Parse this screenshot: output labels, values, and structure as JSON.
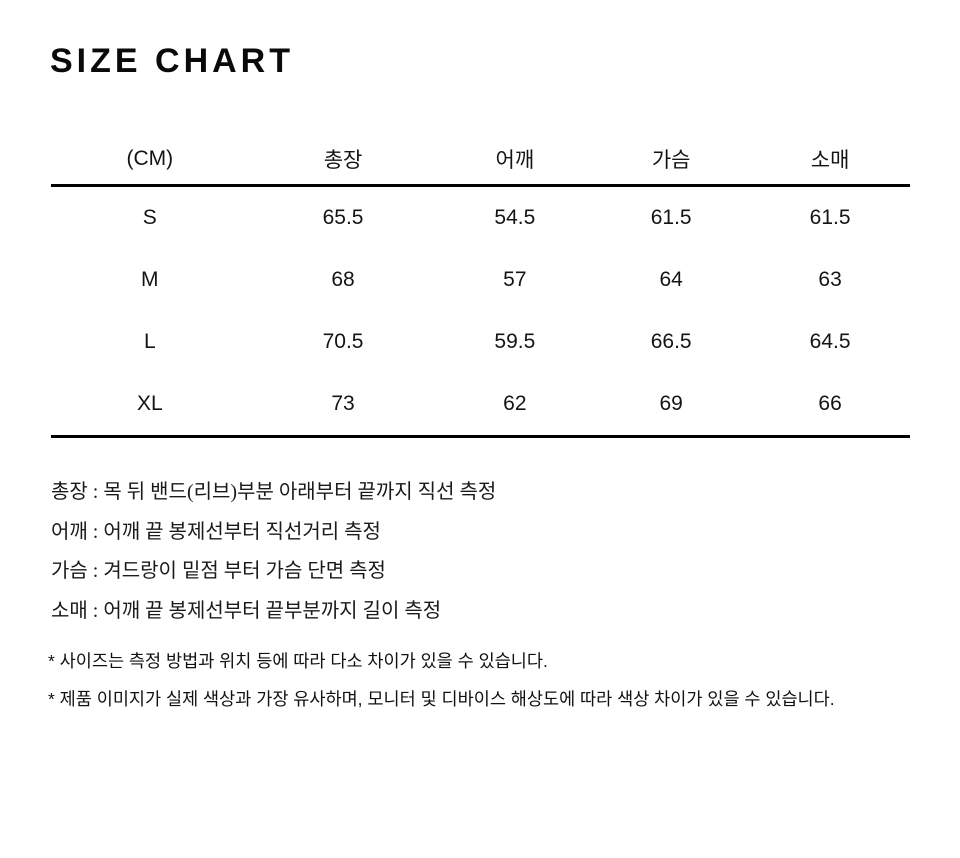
{
  "page": {
    "title": "SIZE CHART"
  },
  "size_table": {
    "unit_header": "(CM)",
    "columns": [
      "(CM)",
      "총장",
      "어깨",
      "가슴",
      "소매"
    ],
    "rows": [
      {
        "size": "S",
        "values": [
          "65.5",
          "54.5",
          "61.5",
          "61.5"
        ]
      },
      {
        "size": "M",
        "values": [
          "68",
          "57",
          "64",
          "63"
        ]
      },
      {
        "size": "L",
        "values": [
          "70.5",
          "59.5",
          "66.5",
          "64.5"
        ]
      },
      {
        "size": "XL",
        "values": [
          "73",
          "62",
          "69",
          "66"
        ]
      }
    ]
  },
  "measurement_guide": [
    "총장 : 목 뒤 밴드(리브)부분 아래부터 끝까지 직선 측정",
    "어깨 : 어깨 끝 봉제선부터 직선거리 측정",
    "가슴 : 겨드랑이 밑점 부터 가슴 단면 측정",
    "소매 : 어깨 끝 봉제선부터 끝부분까지 길이 측정"
  ],
  "notes": [
    "* 사이즈는 측정 방법과 위치 등에 따라 다소 차이가 있을 수 있습니다.",
    "* 제품 이미지가 실제 색상과 가장 유사하며, 모니터 및 디바이스 해상도에 따라 색상 차이가 있을 수 있습니다."
  ],
  "colors": {
    "background": "#ffffff",
    "text": "#111111",
    "rule": "#000000"
  }
}
